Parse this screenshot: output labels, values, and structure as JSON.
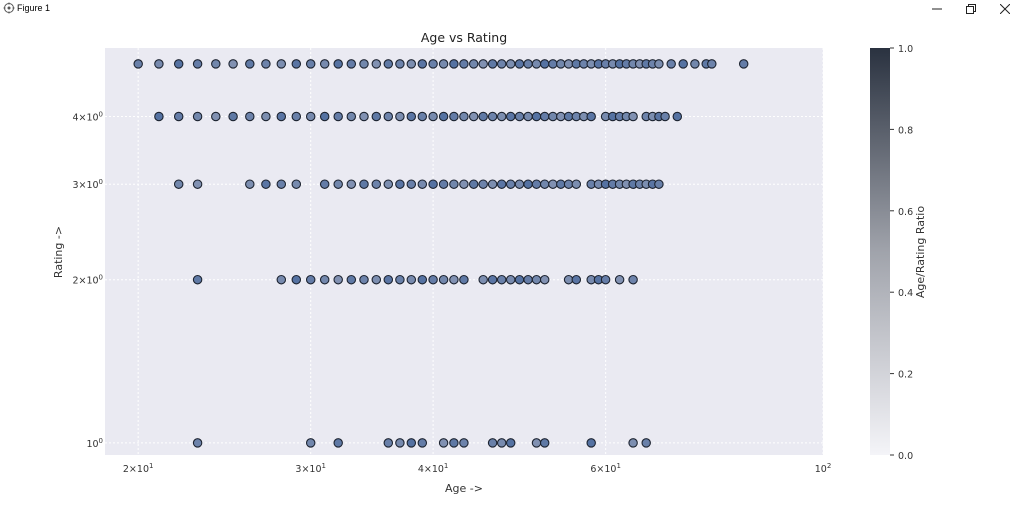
{
  "window": {
    "title": "Figure 1",
    "icons": [
      "figure-app-icon",
      "minimize-icon",
      "restore-icon",
      "close-icon"
    ]
  },
  "chart_data": {
    "type": "scatter",
    "title": "Age vs Rating",
    "xlabel": "Age ->",
    "ylabel": "Rating ->",
    "xscale": "log",
    "yscale": "log",
    "xlim": [
      18.5,
      100
    ],
    "ylim": [
      0.95,
      5.35
    ],
    "grid": true,
    "xticks": [
      {
        "value": 20,
        "base": "2×10",
        "exp": "1"
      },
      {
        "value": 30,
        "base": "3×10",
        "exp": "1"
      },
      {
        "value": 40,
        "base": "4×10",
        "exp": "1"
      },
      {
        "value": 60,
        "base": "6×10",
        "exp": "1"
      },
      {
        "value": 100,
        "base": "10",
        "exp": "2"
      }
    ],
    "yticks": [
      {
        "value": 1,
        "base": "10",
        "exp": "0"
      },
      {
        "value": 2,
        "base": "2×10",
        "exp": "0"
      },
      {
        "value": 3,
        "base": "3×10",
        "exp": "0"
      },
      {
        "value": 4,
        "base": "4×10",
        "exp": "0"
      }
    ],
    "colorbar": {
      "label": "Age/Rating Ratio",
      "range": [
        0,
        1
      ],
      "ticks": [
        "0.0",
        "0.2",
        "0.4",
        "0.6",
        "0.8",
        "1.0"
      ],
      "low_color": "#f4f4f8",
      "high_color": "#2a3240"
    },
    "marker": {
      "fill": "#5a78a8",
      "edge": "#1c2330"
    },
    "series": [
      {
        "rating": 5,
        "ages": [
          20,
          21,
          22,
          23,
          24,
          25,
          26,
          27,
          28,
          29,
          30,
          31,
          32,
          33,
          34,
          35,
          36,
          37,
          38,
          39,
          40,
          41,
          42,
          43,
          44,
          45,
          46,
          47,
          48,
          49,
          50,
          51,
          52,
          53,
          54,
          55,
          56,
          57,
          58,
          59,
          60,
          61,
          62,
          63,
          64,
          65,
          66,
          67,
          68,
          70,
          72,
          74,
          76,
          77,
          83
        ]
      },
      {
        "rating": 4,
        "ages": [
          21,
          22,
          23,
          24,
          25,
          26,
          27,
          28,
          29,
          30,
          31,
          32,
          33,
          34,
          35,
          36,
          37,
          38,
          39,
          40,
          41,
          42,
          43,
          44,
          45,
          46,
          47,
          48,
          49,
          50,
          51,
          52,
          53,
          54,
          55,
          56,
          57,
          58,
          60,
          61,
          62,
          63,
          64,
          66,
          67,
          68,
          69,
          71
        ]
      },
      {
        "rating": 3,
        "ages": [
          22,
          23,
          26,
          27,
          28,
          29,
          31,
          32,
          33,
          34,
          35,
          36,
          37,
          38,
          39,
          40,
          41,
          42,
          43,
          44,
          45,
          46,
          47,
          48,
          49,
          50,
          51,
          52,
          53,
          54,
          55,
          56,
          58,
          59,
          60,
          61,
          62,
          63,
          64,
          65,
          66,
          67,
          68
        ]
      },
      {
        "rating": 2,
        "ages": [
          23,
          28,
          29,
          30,
          31,
          32,
          33,
          34,
          35,
          36,
          37,
          38,
          39,
          40,
          41,
          42,
          43,
          45,
          46,
          47,
          48,
          49,
          50,
          51,
          52,
          55,
          56,
          58,
          59,
          60,
          62,
          64
        ]
      },
      {
        "rating": 1,
        "ages": [
          23,
          30,
          32,
          36,
          37,
          38,
          39,
          41,
          42,
          43,
          46,
          47,
          48,
          51,
          52,
          58,
          64,
          66
        ]
      }
    ]
  }
}
